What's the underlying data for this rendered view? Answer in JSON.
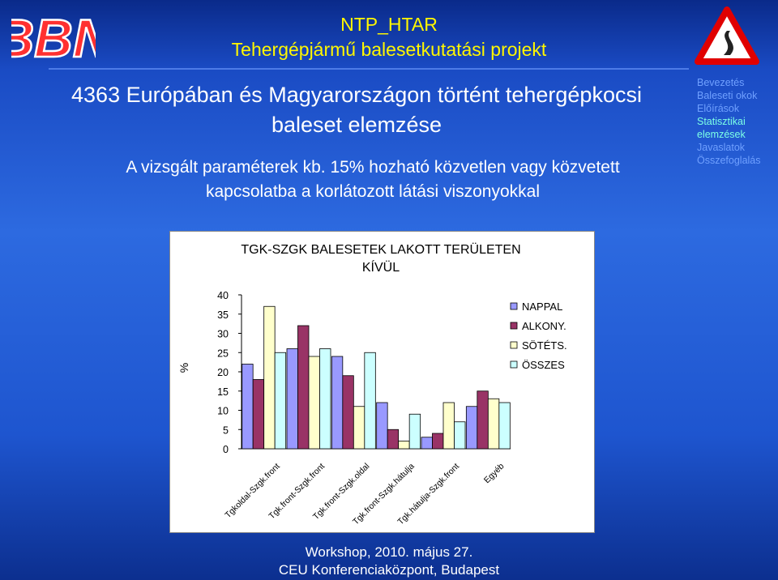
{
  "header": {
    "line1": "NTP_HTAR",
    "line2": "Tehergépjármű balesetkutatási projekt",
    "logo_text": "BBN"
  },
  "main": {
    "title_line1": "4363 Európában és Magyarországon történt tehergépkocsi",
    "title_line2": "baleset elemzése",
    "subtitle_line1": "A  vizsgált paraméterek kb. 15% hozható közvetlen vagy közvetett",
    "subtitle_line2": "kapcsolatba a korlátozott látási viszonyokkal"
  },
  "nav": {
    "items": [
      "Bevezetés",
      "Baleseti okok",
      "Előírások",
      "Statisztikai",
      "elemzések",
      "Javaslatok",
      "Összefoglalás"
    ]
  },
  "footer": {
    "line1": "Workshop, 2010. május 27.",
    "line2": "CEU Konferenciaközpont, Budapest"
  },
  "colors": {
    "nappal": "#9999ff",
    "alkony": "#993366",
    "sotets": "#ffffcc",
    "osszes": "#ccffff",
    "nav_inactive": "#6fa0ff",
    "nav_active": "#7cffe6",
    "header_yellow": "#fff700"
  },
  "chart_data": {
    "type": "bar",
    "title_line1": "TGK-SZGK BALESETEK LAKOTT TERÜLETEN",
    "title_line2": "KÍVÜL",
    "ylabel": "%",
    "ylim": [
      0,
      40
    ],
    "yticks": [
      0,
      5,
      10,
      15,
      20,
      25,
      30,
      35,
      40
    ],
    "categories": [
      "Tgkoldal-Szgk.front",
      "Tgk.front-Szgk.front",
      "Tgk.front-Szgk.oldal",
      "Tgk.front-Szgk.hátulja",
      "Tgk.hátulja-Szgk.front",
      "Egyéb"
    ],
    "series": [
      {
        "name": "NAPPAL",
        "values": [
          22,
          26,
          24,
          12,
          3,
          11
        ]
      },
      {
        "name": "ALKONY.",
        "values": [
          18,
          32,
          19,
          5,
          4,
          15
        ]
      },
      {
        "name": "SÖTÉTS.",
        "values": [
          37,
          24,
          11,
          2,
          12,
          13
        ]
      },
      {
        "name": "ÖSSZES",
        "values": [
          25,
          26,
          25,
          9,
          7,
          12
        ]
      }
    ],
    "legend": "right",
    "grid": false
  }
}
